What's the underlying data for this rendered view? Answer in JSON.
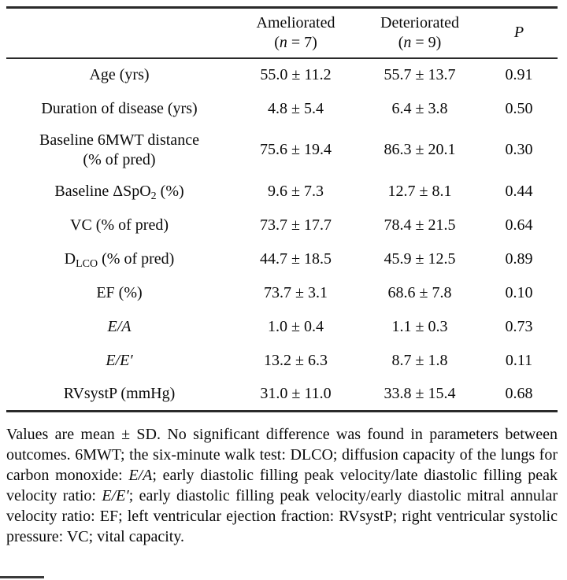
{
  "table": {
    "header": {
      "col1": "",
      "col2": {
        "line1": "Ameliorated",
        "paren_open": "(",
        "n": "n",
        "n_rest": " = 7)"
      },
      "col3": {
        "line1": "Deteriorated",
        "paren_open": "(",
        "n": "n",
        "n_rest": " = 9)"
      },
      "col4": "P"
    },
    "rows": [
      {
        "label": "Age (yrs)",
        "ameliorated": "55.0 ± 11.2",
        "deteriorated": "55.7 ± 13.7",
        "p": "0.91"
      },
      {
        "label": "Duration of disease (yrs)",
        "ameliorated": "4.8 ± 5.4",
        "deteriorated": "6.4 ± 3.8",
        "p": "0.50"
      },
      {
        "label_line1": "Baseline 6MWT distance",
        "label_line2": "(% of pred)",
        "ameliorated": "75.6 ± 19.4",
        "deteriorated": "86.3 ± 20.1",
        "p": "0.30"
      },
      {
        "label_pre": "Baseline ΔSpO",
        "label_sub": "2",
        "label_post": " (%)",
        "ameliorated": "9.6 ± 7.3",
        "deteriorated": "12.7 ± 8.1",
        "p": "0.44"
      },
      {
        "label": "VC (% of pred)",
        "ameliorated": "73.7 ± 17.7",
        "deteriorated": "78.4 ± 21.5",
        "p": "0.64"
      },
      {
        "label_pre": "D",
        "label_sub": "LCO",
        "label_post": " (% of pred)",
        "ameliorated": "44.7 ± 18.5",
        "deteriorated": "45.9 ± 12.5",
        "p": "0.89"
      },
      {
        "label": "EF (%)",
        "ameliorated": "73.7 ± 3.1",
        "deteriorated": "68.6 ± 7.8",
        "p": "0.10"
      },
      {
        "label": "E/A",
        "ameliorated": "1.0 ± 0.4",
        "deteriorated": "1.1 ± 0.3",
        "p": "0.73"
      },
      {
        "label": "E/E′",
        "ameliorated": "13.2 ± 6.3",
        "deteriorated": "8.7 ± 1.8",
        "p": "0.11"
      },
      {
        "label": "RVsystP (mmHg)",
        "ameliorated": "31.0 ± 11.0",
        "deteriorated": "33.8 ± 15.4",
        "p": "0.68"
      }
    ]
  },
  "footnote": {
    "seg1": "Values are mean ± SD. No significant difference was found in parameters between outcomes. 6MWT; the six-minute walk test: DLCO; diffusion capacity of the lungs for carbon monoxide: ",
    "ea": "E/A",
    "seg2": "; early diastolic filling peak velocity/late diastolic filling peak velocity ratio: ",
    "eeprime": "E/E′",
    "seg3": "; early diastolic filling peak velocity/early diastolic mitral annular velocity ratio: EF; left ventricular ejection fraction: RVsystP; right ventricular systolic pressure: VC; vital capacity."
  }
}
